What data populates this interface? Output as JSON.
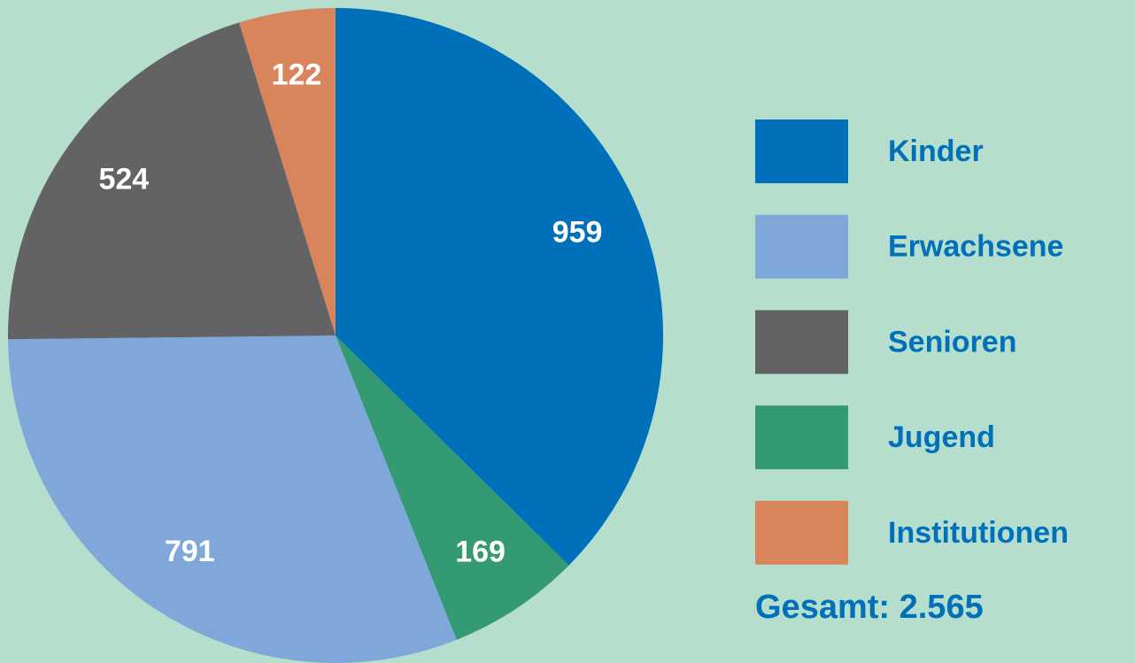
{
  "chart_data": {
    "type": "pie",
    "categories": [
      "Kinder",
      "Jugend",
      "Erwachsene",
      "Senioren",
      "Institutionen"
    ],
    "values": [
      959,
      169,
      791,
      524,
      122
    ],
    "colors": [
      "#0070bb",
      "#339a74",
      "#7fa7d9",
      "#636366",
      "#d9855c"
    ],
    "total": {
      "value": 2565,
      "label": "Gesamt: 2.565"
    }
  }
}
